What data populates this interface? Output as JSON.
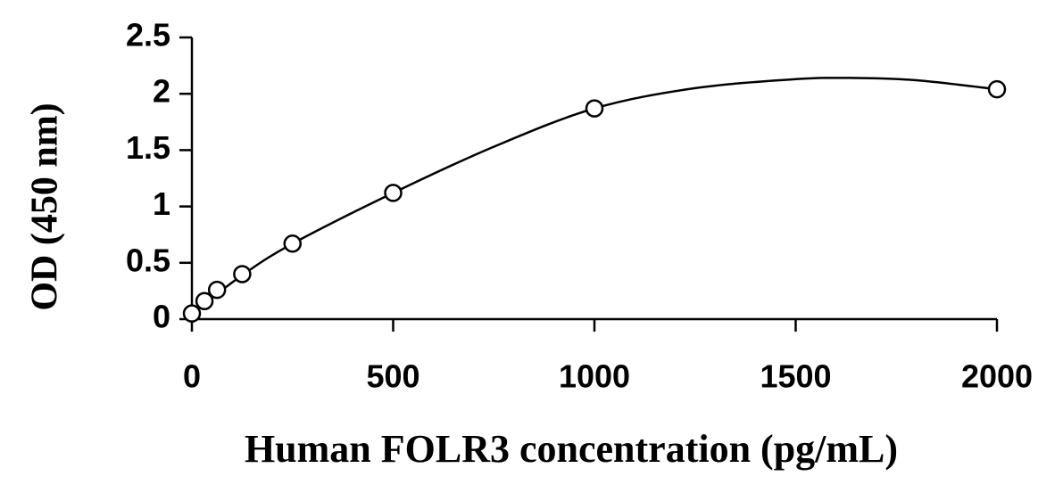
{
  "chart_data": {
    "type": "scatter",
    "x_label": "Human FOLR3 concentration (pg/mL)",
    "y_label": "OD (450 nm)",
    "x": [
      0,
      31.25,
      62.5,
      125,
      250,
      500,
      1000,
      2000
    ],
    "values": [
      0.05,
      0.16,
      0.26,
      0.4,
      0.67,
      1.12,
      1.87,
      2.04
    ],
    "color": "#000000",
    "curve": {
      "x": [
        0,
        125,
        250,
        500,
        750,
        1000,
        1250,
        1500,
        1650,
        1800,
        2000
      ],
      "values": [
        0.05,
        0.39,
        0.67,
        1.12,
        1.53,
        1.87,
        2.05,
        2.13,
        2.14,
        2.12,
        2.04
      ]
    },
    "xlim": [
      0,
      2000
    ],
    "xticks": [
      0,
      500,
      1000,
      1500,
      2000
    ],
    "ylim": [
      0,
      2.5
    ],
    "yticks": [
      0,
      0.5,
      1,
      1.5,
      2,
      2.5
    ],
    "grid": false
  }
}
